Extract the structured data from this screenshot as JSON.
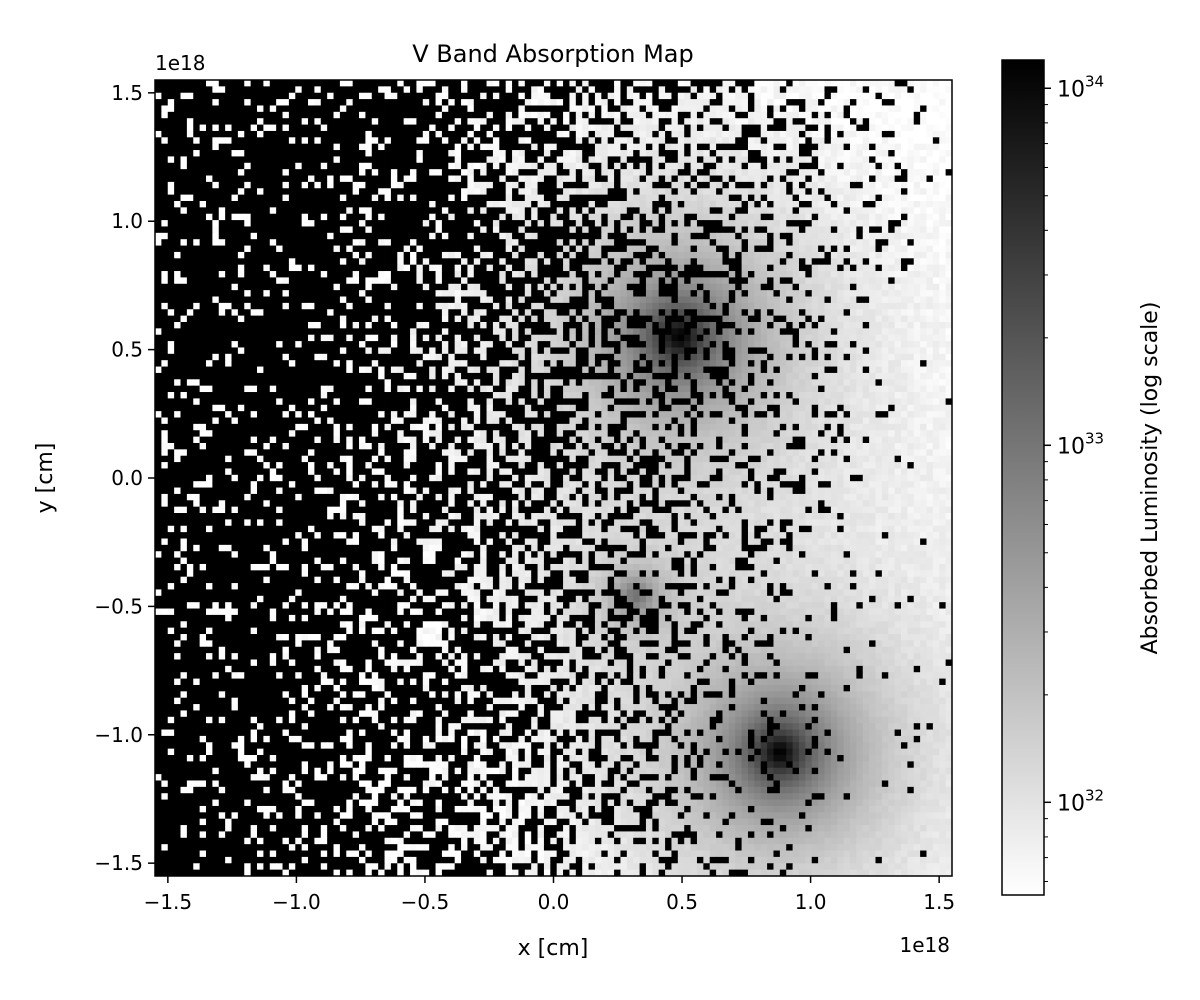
{
  "chart_data": {
    "type": "heatmap",
    "title": "V Band Absorption Map",
    "xlabel": "x [cm]",
    "ylabel": "y [cm]",
    "x_offset_label": "1e18",
    "y_offset_label": "1e18",
    "xlim": [
      -1.55,
      1.55
    ],
    "ylim": [
      -1.55,
      1.55
    ],
    "x_ticks": [
      -1.5,
      -1.0,
      -0.5,
      0.0,
      0.5,
      1.0,
      1.5
    ],
    "x_tick_labels": [
      "−1.5",
      "−1.0",
      "−0.5",
      "0.0",
      "0.5",
      "1.0",
      "1.5"
    ],
    "y_ticks": [
      -1.5,
      -1.0,
      -0.5,
      0.0,
      0.5,
      1.0,
      1.5
    ],
    "y_tick_labels": [
      "−1.5",
      "−1.0",
      "−0.5",
      "0.0",
      "0.5",
      "1.0",
      "1.5"
    ],
    "grid": 125,
    "colormap": "gray_r",
    "color_scale": "log",
    "colorbar": {
      "label": "Absorbed Luminosity (log scale)",
      "vmin": 5.5e+31,
      "vmax": 1.2e+34,
      "major_ticks": [
        1e+32,
        1e+33,
        1e+34
      ],
      "major_tick_labels": [
        [
          "10",
          "32"
        ],
        [
          "10",
          "33"
        ],
        [
          "10",
          "34"
        ]
      ]
    },
    "sources": [
      {
        "x": 0.49,
        "y": 0.55,
        "peak": 1.2e+34
      },
      {
        "x": 0.88,
        "y": -1.07,
        "peak": 1.2e+34
      },
      {
        "x": 0.32,
        "y": -0.46,
        "peak": 1e+33
      }
    ]
  }
}
